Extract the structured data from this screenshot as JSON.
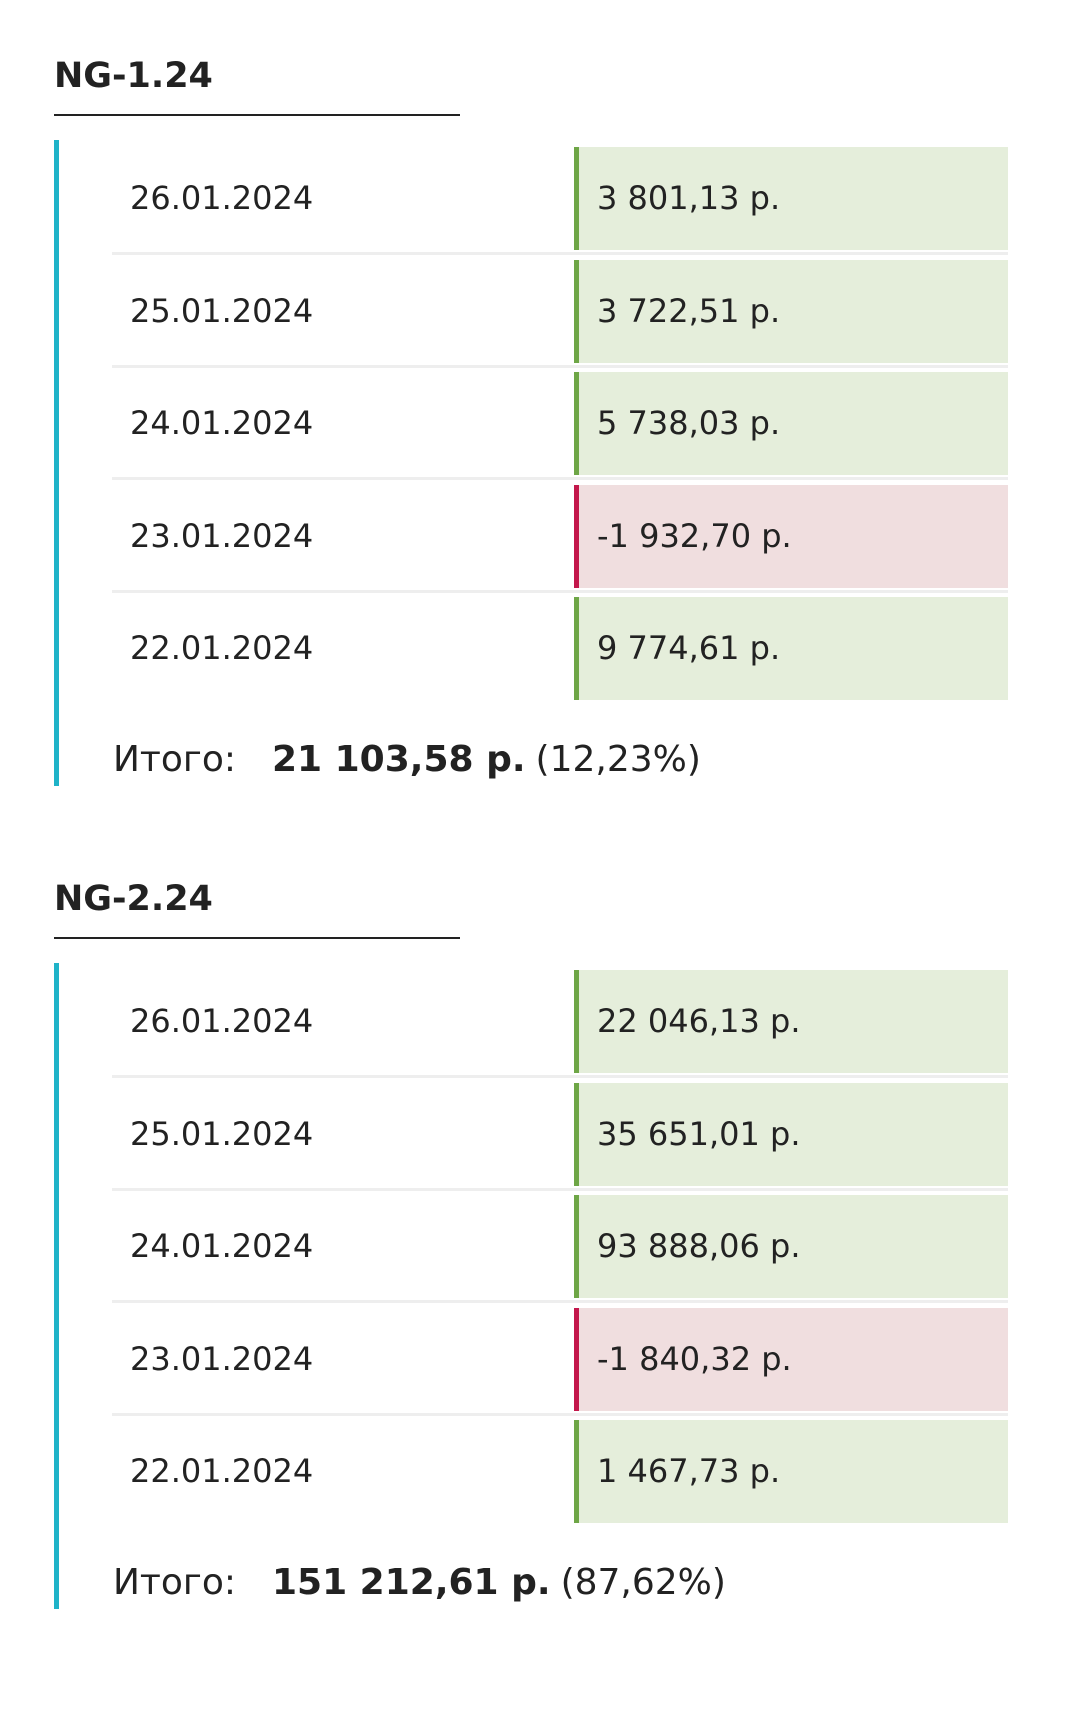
{
  "sections": [
    {
      "title": "NG-1.24",
      "rows": [
        {
          "date": "26.01.2024",
          "value": "3 801,13 р."
        },
        {
          "date": "25.01.2024",
          "value": "3 722,51 р."
        },
        {
          "date": "24.01.2024",
          "value": "5 738,03 р."
        },
        {
          "date": "23.01.2024",
          "value": "-1 932,70 р."
        },
        {
          "date": "22.01.2024",
          "value": "9 774,61 р."
        }
      ],
      "total": {
        "label": "Итого:",
        "amount": "21 103,58 р.",
        "percent": "(12,23%)"
      }
    },
    {
      "title": "NG-2.24",
      "rows": [
        {
          "date": "26.01.2024",
          "value": "22 046,13 р."
        },
        {
          "date": "25.01.2024",
          "value": "35 651,01 р."
        },
        {
          "date": "24.01.2024",
          "value": "93 888,06 р."
        },
        {
          "date": "23.01.2024",
          "value": "-1 840,32 р."
        },
        {
          "date": "22.01.2024",
          "value": "1 467,73 р."
        }
      ],
      "total": {
        "label": "Итого:",
        "amount": "151 212,61 р.",
        "percent": "(87,62%)"
      }
    }
  ]
}
